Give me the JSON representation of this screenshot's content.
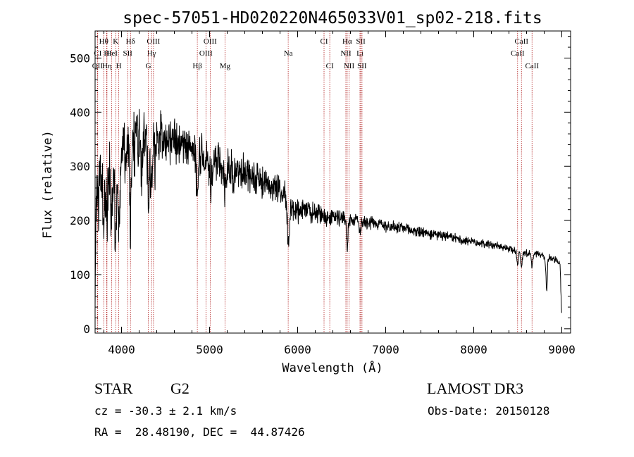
{
  "title": "spec-57051-HD020220N465033V01_sp02-218.fits",
  "xlabel": "Wavelength (Å)",
  "ylabel": "Flux (relative)",
  "info": {
    "object_class": "STAR",
    "subclass": "G2",
    "survey": "LAMOST DR3",
    "cz": "cz = -30.3 ± 2.1 km/s",
    "obs_date": "Obs-Date: 20150128",
    "radec": "RA =  28.48190, DEC =  44.87426"
  },
  "colors": {
    "spectrum": "#000000",
    "line_marker": "#b22222",
    "axis": "#000000"
  },
  "chart_data": {
    "type": "line",
    "title": "spec-57051-HD020220N465033V01_sp02-218.fits",
    "xlabel": "Wavelength (Å)",
    "ylabel": "Flux (relative)",
    "xlim": [
      3700,
      9100
    ],
    "ylim": [
      -8,
      550
    ],
    "xticks": [
      4000,
      5000,
      6000,
      7000,
      8000,
      9000
    ],
    "yticks": [
      0,
      100,
      200,
      300,
      400,
      500
    ],
    "continuum_knots": [
      [
        3700,
        40
      ],
      [
        3710,
        230
      ],
      [
        3760,
        280
      ],
      [
        3850,
        300
      ],
      [
        3950,
        320
      ],
      [
        4050,
        330
      ],
      [
        4200,
        345
      ],
      [
        4350,
        360
      ],
      [
        4500,
        355
      ],
      [
        4600,
        345
      ],
      [
        4800,
        330
      ],
      [
        4900,
        320
      ],
      [
        5000,
        310
      ],
      [
        5200,
        300
      ],
      [
        5400,
        290
      ],
      [
        5600,
        270
      ],
      [
        5800,
        260
      ],
      [
        5900,
        232
      ],
      [
        5960,
        218
      ],
      [
        6100,
        218
      ],
      [
        6300,
        208
      ],
      [
        6500,
        205
      ],
      [
        6700,
        200
      ],
      [
        6900,
        195
      ],
      [
        7100,
        187
      ],
      [
        7300,
        182
      ],
      [
        7500,
        175
      ],
      [
        7700,
        170
      ],
      [
        7900,
        163
      ],
      [
        8100,
        158
      ],
      [
        8300,
        152
      ],
      [
        8500,
        143
      ],
      [
        8700,
        138
      ],
      [
        8900,
        130
      ],
      [
        8980,
        120
      ],
      [
        9000,
        20
      ]
    ],
    "absorption_features": [
      [
        3798,
        12,
        80
      ],
      [
        3835,
        12,
        90
      ],
      [
        3889,
        12,
        110
      ],
      [
        3934,
        10,
        170
      ],
      [
        3969,
        12,
        160
      ],
      [
        4102,
        10,
        140
      ],
      [
        4227,
        8,
        50
      ],
      [
        4308,
        12,
        100
      ],
      [
        4341,
        10,
        100
      ],
      [
        4384,
        10,
        50
      ],
      [
        4861,
        10,
        80
      ],
      [
        5015,
        14,
        40
      ],
      [
        5175,
        10,
        50
      ],
      [
        5270,
        10,
        30
      ],
      [
        5895,
        10,
        85
      ],
      [
        6563,
        8,
        55
      ],
      [
        6708,
        10,
        20
      ],
      [
        8498,
        8,
        25
      ],
      [
        8542,
        8,
        30
      ],
      [
        8662,
        8,
        25
      ],
      [
        8820,
        10,
        20
      ],
      [
        8830,
        6,
        50
      ]
    ],
    "noise_amplitude": [
      [
        3700,
        90
      ],
      [
        4500,
        55
      ],
      [
        5800,
        30
      ],
      [
        6600,
        16
      ],
      [
        8000,
        9
      ],
      [
        9000,
        8
      ]
    ],
    "line_markers": [
      {
        "label": "Hθ",
        "wavelength": 3798,
        "row": 1
      },
      {
        "label": "K",
        "wavelength": 3934,
        "row": 1
      },
      {
        "label": "Hδ",
        "wavelength": 4102,
        "row": 1
      },
      {
        "label": "OIII",
        "wavelength": 4363,
        "row": 1
      },
      {
        "label": "OIII",
        "wavelength": 5007,
        "row": 1
      },
      {
        "label": "CI",
        "wavelength": 6300,
        "row": 1
      },
      {
        "label": "Hα",
        "wavelength": 6563,
        "row": 1
      },
      {
        "label": "SII",
        "wavelength": 6717,
        "row": 1
      },
      {
        "label": "CaII",
        "wavelength": 8542,
        "row": 1
      },
      {
        "label": "CI",
        "wavelength": 3730,
        "row": 2
      },
      {
        "label": "H",
        "wavelength": 3831,
        "row": 2
      },
      {
        "label": "HeI",
        "wavelength": 3889,
        "row": 2
      },
      {
        "label": "SII",
        "wavelength": 4070,
        "row": 2
      },
      {
        "label": "Hγ",
        "wavelength": 4341,
        "row": 2
      },
      {
        "label": "OIII",
        "wavelength": 4959,
        "row": 2
      },
      {
        "label": "Na",
        "wavelength": 5893,
        "row": 2
      },
      {
        "label": "NII",
        "wavelength": 6548,
        "row": 2
      },
      {
        "label": "Li",
        "wavelength": 6708,
        "row": 2
      },
      {
        "label": "CaII",
        "wavelength": 8498,
        "row": 2
      },
      {
        "label": "OII",
        "wavelength": 3727,
        "row": 3
      },
      {
        "label": "Hη",
        "wavelength": 3835,
        "row": 3
      },
      {
        "label": "H",
        "wavelength": 3969,
        "row": 3
      },
      {
        "label": "G",
        "wavelength": 4305,
        "row": 3
      },
      {
        "label": "Hβ",
        "wavelength": 4861,
        "row": 3
      },
      {
        "label": "Mg",
        "wavelength": 5175,
        "row": 3
      },
      {
        "label": "CI",
        "wavelength": 6365,
        "row": 3
      },
      {
        "label": "NII",
        "wavelength": 6584,
        "row": 3
      },
      {
        "label": "SII",
        "wavelength": 6731,
        "row": 3
      },
      {
        "label": "CaII",
        "wavelength": 8662,
        "row": 3
      }
    ]
  }
}
